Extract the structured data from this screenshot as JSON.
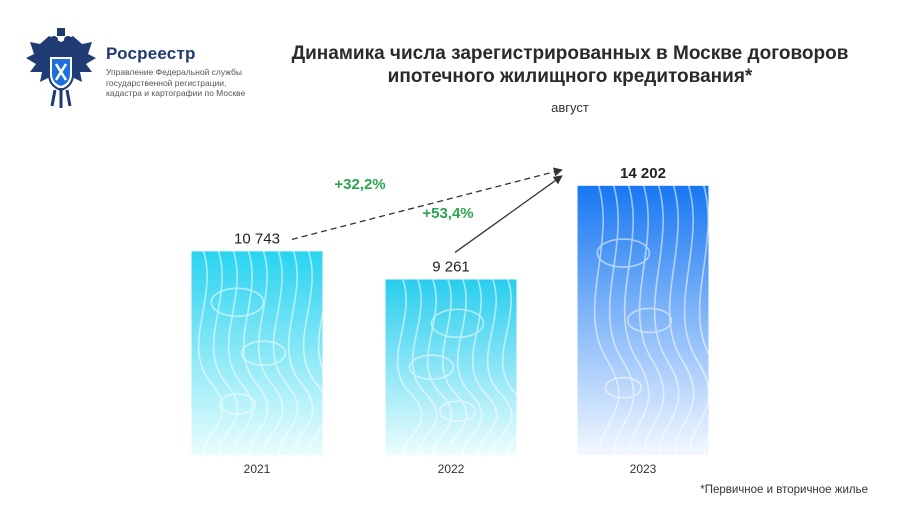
{
  "brand": {
    "name": "Росреестр",
    "description_lines": [
      "Управление Федеральной службы",
      "государственной регистрации,",
      "кадастра и картографии по Москве"
    ]
  },
  "chart_data": {
    "type": "bar",
    "title_lines": [
      "Динамика числа зарегистрированных в Москве договоров",
      "ипотечного жилищного кредитования*"
    ],
    "subtitle": "август",
    "categories": [
      "2021",
      "2022",
      "2023"
    ],
    "values": [
      10743,
      9261,
      14202
    ],
    "value_labels": [
      "10 743",
      "9 261",
      "14 202"
    ],
    "ylim": [
      0,
      15300
    ],
    "annotations": [
      {
        "text": "+32,2%",
        "from": "2021",
        "to": "2023",
        "style": "dashed"
      },
      {
        "text": "+53,4%",
        "from": "2022",
        "to": "2023",
        "style": "solid"
      }
    ],
    "annotation_color": "#2ea44f",
    "bar_gradients": [
      {
        "top": "#29d3f0",
        "bottom": "#e9fdfd"
      },
      {
        "top": "#29cdee",
        "bottom": "#ecfdfd"
      },
      {
        "top": "#1877f2",
        "bottom": "#f2f8ff"
      }
    ]
  },
  "footnote": "*Первичное и вторичное жилье"
}
